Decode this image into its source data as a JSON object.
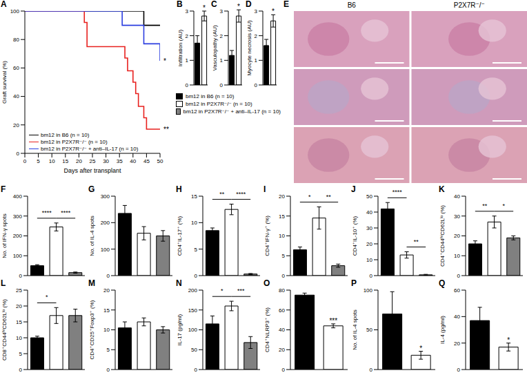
{
  "chart_data": [
    {
      "panel": "A",
      "type": "line",
      "xlabel": "Days after transplant",
      "ylabel": "Graft survival (%)",
      "xlim": [
        0,
        50
      ],
      "xticks": [
        0,
        5,
        10,
        15,
        20,
        25,
        30,
        35,
        40,
        45,
        50
      ],
      "ylim": [
        0,
        100
      ],
      "yticks": [
        0,
        20,
        40,
        60,
        80,
        100
      ],
      "legend": "lower left",
      "series": [
        {
          "name": "bm12 in B6 (n = 10)",
          "color": "#000000",
          "line_style": "step",
          "x": [
            0,
            44,
            50
          ],
          "values": [
            100,
            90,
            90
          ]
        },
        {
          "name": "bm12 in P2X7R⁻/⁻ (n = 10)",
          "color": "#e8201e",
          "line_style": "step",
          "x": [
            0,
            22,
            23,
            37,
            38,
            40,
            41,
            42,
            44,
            45,
            50
          ],
          "values": [
            100,
            92,
            75,
            67,
            58,
            50,
            42,
            33,
            25,
            17,
            17
          ],
          "annotation": "**"
        },
        {
          "name": "bm12 in P2X7R⁻/⁻ + anti–IL-17 (n = 10)",
          "color": "#2b3de0",
          "line_style": "step",
          "x": [
            0,
            36,
            44,
            50
          ],
          "values": [
            100,
            90,
            77,
            65
          ],
          "annotation": "*"
        }
      ]
    },
    {
      "panel": "B",
      "type": "bar",
      "ylabel": "Infiltration (AU)",
      "values": [
        1.7,
        2.8
      ],
      "errors": [
        0.3,
        0.2
      ],
      "colors": [
        "#000000",
        "#ffffff"
      ],
      "ylim": [
        0,
        3
      ],
      "yticks": [
        0,
        1,
        2,
        3
      ],
      "tick_labels": "y",
      "significance": [
        {
          "bars": [
            1
          ],
          "label": "*"
        }
      ]
    },
    {
      "panel": "C",
      "type": "bar",
      "ylabel": "Vasculopathy (AU)",
      "values": [
        1.2,
        2.8
      ],
      "errors": [
        0.2,
        0.25
      ],
      "colors": [
        "#000000",
        "#ffffff"
      ],
      "ylim": [
        0,
        3
      ],
      "yticks": [
        0,
        1,
        2,
        3
      ],
      "tick_labels": "y",
      "significance": [
        {
          "bars": [
            1
          ],
          "label": "*"
        }
      ]
    },
    {
      "panel": "D",
      "type": "bar",
      "ylabel": "Myocyte necrosis (AU)",
      "values": [
        1.6,
        2.6
      ],
      "errors": [
        0.25,
        0.25
      ],
      "colors": [
        "#000000",
        "#ffffff"
      ],
      "ylim": [
        0,
        3
      ],
      "yticks": [
        0,
        1,
        2,
        3
      ],
      "tick_labels": "y",
      "significance": [
        {
          "bars": [
            1
          ],
          "label": "*"
        }
      ]
    },
    {
      "type": "legend",
      "series": [
        {
          "name": "bm12 in B6 (n = 10)",
          "color": "#000000"
        },
        {
          "name": "bm12 in P2X7R⁻/⁻ (n = 10)",
          "color": "#ffffff"
        },
        {
          "name": "bm12 in P2X7R⁻/⁻ + anti–IL-17 (n = 10)",
          "color": "#808080"
        }
      ]
    },
    {
      "panel": "E",
      "type": "image",
      "columns": [
        "B6",
        "P2X7R⁻/⁻"
      ]
    },
    {
      "panel": "F",
      "type": "bar",
      "ylabel": "No. of IFN-γ spots",
      "values": [
        50,
        245,
        15
      ],
      "errors": [
        5,
        20,
        3
      ],
      "colors": [
        "#000000",
        "#ffffff",
        "#808080"
      ],
      "ylim": [
        0,
        400
      ],
      "yticks": [
        0,
        100,
        200,
        300,
        400
      ],
      "tick_labels": "y",
      "significance": [
        {
          "bars": [
            0,
            1
          ],
          "label": "****"
        },
        {
          "bars": [
            1,
            2
          ],
          "label": "****"
        }
      ]
    },
    {
      "panel": "G",
      "type": "bar",
      "ylabel": "No. of IL-4 spots",
      "values": [
        235,
        160,
        150
      ],
      "errors": [
        30,
        25,
        20
      ],
      "colors": [
        "#000000",
        "#ffffff",
        "#808080"
      ],
      "ylim": [
        0,
        300
      ],
      "yticks": [
        0,
        100,
        200,
        300
      ],
      "tick_labels": "y",
      "significance": []
    },
    {
      "panel": "H",
      "type": "bar",
      "ylabel": "CD4⁺IL-17⁺ (%)",
      "values": [
        8.5,
        12.5,
        0.3
      ],
      "errors": [
        0.5,
        1.0,
        0.1
      ],
      "colors": [
        "#000000",
        "#ffffff",
        "#808080"
      ],
      "ylim": [
        0,
        15
      ],
      "yticks": [
        0,
        5,
        10,
        15
      ],
      "tick_labels": "y",
      "significance": [
        {
          "bars": [
            0,
            1
          ],
          "label": "**"
        },
        {
          "bars": [
            1,
            2
          ],
          "label": "****"
        }
      ]
    },
    {
      "panel": "I",
      "type": "bar",
      "ylabel": "CD4⁺IFN-γ⁺ (%)",
      "values": [
        6.5,
        14.5,
        2.5
      ],
      "errors": [
        0.7,
        2.8,
        0.4
      ],
      "colors": [
        "#000000",
        "#ffffff",
        "#808080"
      ],
      "ylim": [
        0,
        20
      ],
      "yticks": [
        0,
        5,
        10,
        15,
        20
      ],
      "tick_labels": "y",
      "significance": [
        {
          "bars": [
            0,
            1
          ],
          "label": "*"
        },
        {
          "bars": [
            1,
            2
          ],
          "label": "**"
        }
      ]
    },
    {
      "panel": "J",
      "type": "bar",
      "ylabel": "CD4⁺IL-10⁺ (%)",
      "values": [
        42,
        13,
        0.5
      ],
      "errors": [
        4,
        2,
        0.3
      ],
      "colors": [
        "#000000",
        "#ffffff",
        "#808080"
      ],
      "ylim": [
        0,
        50
      ],
      "yticks": [
        0,
        10,
        20,
        30,
        40,
        50
      ],
      "tick_labels": "y",
      "significance": [
        {
          "bars": [
            0,
            1
          ],
          "label": "****"
        },
        {
          "bars": [
            1,
            2
          ],
          "label": "**"
        }
      ]
    },
    {
      "panel": "K",
      "type": "bar",
      "ylabel": "CD4⁺CD44ʰⁱCD62Lˡᵒ (%)",
      "values": [
        16,
        27,
        19
      ],
      "errors": [
        1.5,
        3,
        1
      ],
      "colors": [
        "#000000",
        "#ffffff",
        "#808080"
      ],
      "ylim": [
        0,
        40
      ],
      "yticks": [
        0,
        10,
        20,
        30,
        40
      ],
      "tick_labels": "y",
      "significance": [
        {
          "bars": [
            0,
            1
          ],
          "label": "**"
        },
        {
          "bars": [
            1,
            2
          ],
          "label": "*"
        }
      ]
    },
    {
      "panel": "L",
      "type": "bar",
      "ylabel": "CD8⁺CD44ʰⁱCD62Lˡᵒ (%)",
      "values": [
        10,
        17,
        17
      ],
      "errors": [
        0.5,
        2.5,
        2
      ],
      "colors": [
        "#000000",
        "#ffffff",
        "#808080"
      ],
      "ylim": [
        0,
        25
      ],
      "yticks": [
        0,
        5,
        10,
        15,
        20,
        25
      ],
      "tick_labels": "y",
      "significance": [
        {
          "bars": [
            0,
            1
          ],
          "label": "*"
        }
      ]
    },
    {
      "panel": "M",
      "type": "bar",
      "ylabel": "CD4⁺CD25⁺Foxp3⁺ (%)",
      "values": [
        10.5,
        12,
        10
      ],
      "errors": [
        1.5,
        1,
        0.8
      ],
      "colors": [
        "#000000",
        "#ffffff",
        "#808080"
      ],
      "ylim": [
        0,
        20
      ],
      "yticks": [
        0,
        5,
        10,
        15,
        20
      ],
      "tick_labels": "y",
      "significance": []
    },
    {
      "panel": "N",
      "type": "bar",
      "ylabel": "IL-17 (pg/ml)",
      "values": [
        115,
        160,
        68
      ],
      "errors": [
        20,
        12,
        15
      ],
      "colors": [
        "#000000",
        "#ffffff",
        "#808080"
      ],
      "ylim": [
        0,
        200
      ],
      "yticks": [
        0,
        50,
        100,
        150,
        200
      ],
      "tick_labels": "y",
      "significance": [
        {
          "bars": [
            0,
            1
          ],
          "label": "*"
        },
        {
          "bars": [
            1,
            2
          ],
          "label": "***"
        }
      ]
    },
    {
      "panel": "O",
      "type": "bar",
      "ylabel": "CD4⁺NLRP3⁺ (%)",
      "values": [
        75,
        44
      ],
      "errors": [
        2,
        2
      ],
      "colors": [
        "#000000",
        "#ffffff"
      ],
      "ylim": [
        0,
        80
      ],
      "yticks": [
        0,
        20,
        40,
        60,
        80
      ],
      "tick_labels": "y",
      "significance": [
        {
          "bars": [
            1
          ],
          "label": "***"
        }
      ]
    },
    {
      "panel": "P",
      "type": "bar",
      "ylabel": "No. of IL-4 spots",
      "values": [
        70,
        18
      ],
      "errors": [
        28,
        5
      ],
      "colors": [
        "#000000",
        "#ffffff"
      ],
      "ylim": [
        0,
        100
      ],
      "yticks": [
        0,
        50,
        100
      ],
      "tick_labels": "y",
      "significance": [
        {
          "bars": [
            1
          ],
          "label": "*"
        }
      ]
    },
    {
      "panel": "Q",
      "type": "bar",
      "ylabel": "IL-4 (pg/ml)",
      "values": [
        37,
        17
      ],
      "errors": [
        10,
        3
      ],
      "colors": [
        "#000000",
        "#ffffff"
      ],
      "ylim": [
        0,
        60
      ],
      "yticks": [
        0,
        20,
        40,
        60
      ],
      "tick_labels": "y",
      "significance": [
        {
          "bars": [
            1
          ],
          "label": "*"
        }
      ]
    }
  ]
}
